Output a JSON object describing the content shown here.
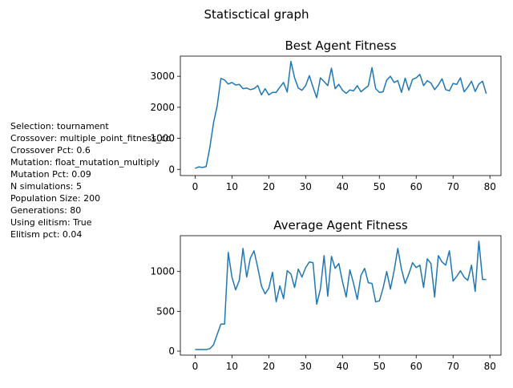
{
  "figure": {
    "suptitle": "Statisctical graph"
  },
  "params": [
    "Selection: tournament",
    "Crossover: multiple_point_fitness_co",
    "Crossover Pct: 0.6",
    "Mutation: float_mutation_multiply",
    "Mutation Pct: 0.09",
    "N simulations: 5",
    "Population Size: 200",
    "Generations: 80",
    "Using elitism: True",
    "Elitism pct: 0.04"
  ],
  "colors": {
    "line": "#1f77b4"
  },
  "chart_data": [
    {
      "type": "line",
      "title": "Best Agent Fitness",
      "xlabel": "",
      "ylabel": "",
      "xlim": [
        -4,
        83
      ],
      "ylim": [
        -200,
        3650
      ],
      "xticks": [
        0,
        10,
        20,
        30,
        40,
        50,
        60,
        70,
        80
      ],
      "yticks": [
        0,
        1000,
        2000,
        3000
      ],
      "x": [
        0,
        1,
        2,
        3,
        4,
        5,
        6,
        7,
        8,
        9,
        10,
        11,
        12,
        13,
        14,
        15,
        16,
        17,
        18,
        19,
        20,
        21,
        22,
        23,
        24,
        25,
        26,
        27,
        28,
        29,
        30,
        31,
        32,
        33,
        34,
        35,
        36,
        37,
        38,
        39,
        40,
        41,
        42,
        43,
        44,
        45,
        46,
        47,
        48,
        49,
        50,
        51,
        52,
        53,
        54,
        55,
        56,
        57,
        58,
        59,
        60,
        61,
        62,
        63,
        64,
        65,
        66,
        67,
        68,
        69,
        70,
        71,
        72,
        73,
        74,
        75,
        76,
        77,
        78,
        79
      ],
      "series": [
        {
          "values": [
            30,
            80,
            60,
            90,
            700,
            1500,
            2050,
            2930,
            2880,
            2750,
            2800,
            2720,
            2740,
            2600,
            2620,
            2570,
            2600,
            2700,
            2400,
            2600,
            2400,
            2480,
            2480,
            2650,
            2800,
            2490,
            3480,
            2950,
            2620,
            2550,
            2700,
            3020,
            2650,
            2310,
            2950,
            2830,
            2700,
            3260,
            2600,
            2740,
            2550,
            2450,
            2560,
            2530,
            2700,
            2500,
            2600,
            2690,
            3280,
            2600,
            2480,
            2500,
            2880,
            3000,
            2800,
            2860,
            2480,
            2940,
            2550,
            2900,
            2950,
            3060,
            2700,
            2860,
            2780,
            2570,
            2720,
            2920,
            2570,
            2530,
            2770,
            2740,
            2950,
            2500,
            2650,
            2840,
            2510,
            2750,
            2840,
            2440
          ]
        }
      ]
    },
    {
      "type": "line",
      "title": "Average Agent Fitness",
      "xlabel": "",
      "ylabel": "",
      "xlim": [
        -4,
        83
      ],
      "ylim": [
        -50,
        1450
      ],
      "xticks": [
        0,
        10,
        20,
        30,
        40,
        50,
        60,
        70,
        80
      ],
      "yticks": [
        0,
        500,
        1000
      ],
      "x": [
        0,
        1,
        2,
        3,
        4,
        5,
        6,
        7,
        8,
        9,
        10,
        11,
        12,
        13,
        14,
        15,
        16,
        17,
        18,
        19,
        20,
        21,
        22,
        23,
        24,
        25,
        26,
        27,
        28,
        29,
        30,
        31,
        32,
        33,
        34,
        35,
        36,
        37,
        38,
        39,
        40,
        41,
        42,
        43,
        44,
        45,
        46,
        47,
        48,
        49,
        50,
        51,
        52,
        53,
        54,
        55,
        56,
        57,
        58,
        59,
        60,
        61,
        62,
        63,
        64,
        65,
        66,
        67,
        68,
        69,
        70,
        71,
        72,
        73,
        74,
        75,
        76,
        77,
        78,
        79
      ],
      "series": [
        {
          "values": [
            20,
            20,
            20,
            20,
            30,
            80,
            210,
            340,
            340,
            1240,
            930,
            770,
            890,
            1290,
            930,
            1170,
            1260,
            1050,
            820,
            720,
            790,
            990,
            620,
            820,
            660,
            1010,
            970,
            800,
            1030,
            930,
            1050,
            1120,
            1110,
            590,
            780,
            1200,
            690,
            1190,
            1040,
            1100,
            870,
            680,
            1020,
            850,
            650,
            950,
            1040,
            860,
            850,
            620,
            630,
            790,
            1000,
            780,
            1010,
            1290,
            1030,
            850,
            970,
            1110,
            1050,
            1080,
            800,
            1160,
            1100,
            680,
            1200,
            1120,
            1080,
            1260,
            880,
            940,
            1010,
            930,
            890,
            1080,
            750,
            1380,
            900,
            900
          ]
        }
      ]
    }
  ]
}
